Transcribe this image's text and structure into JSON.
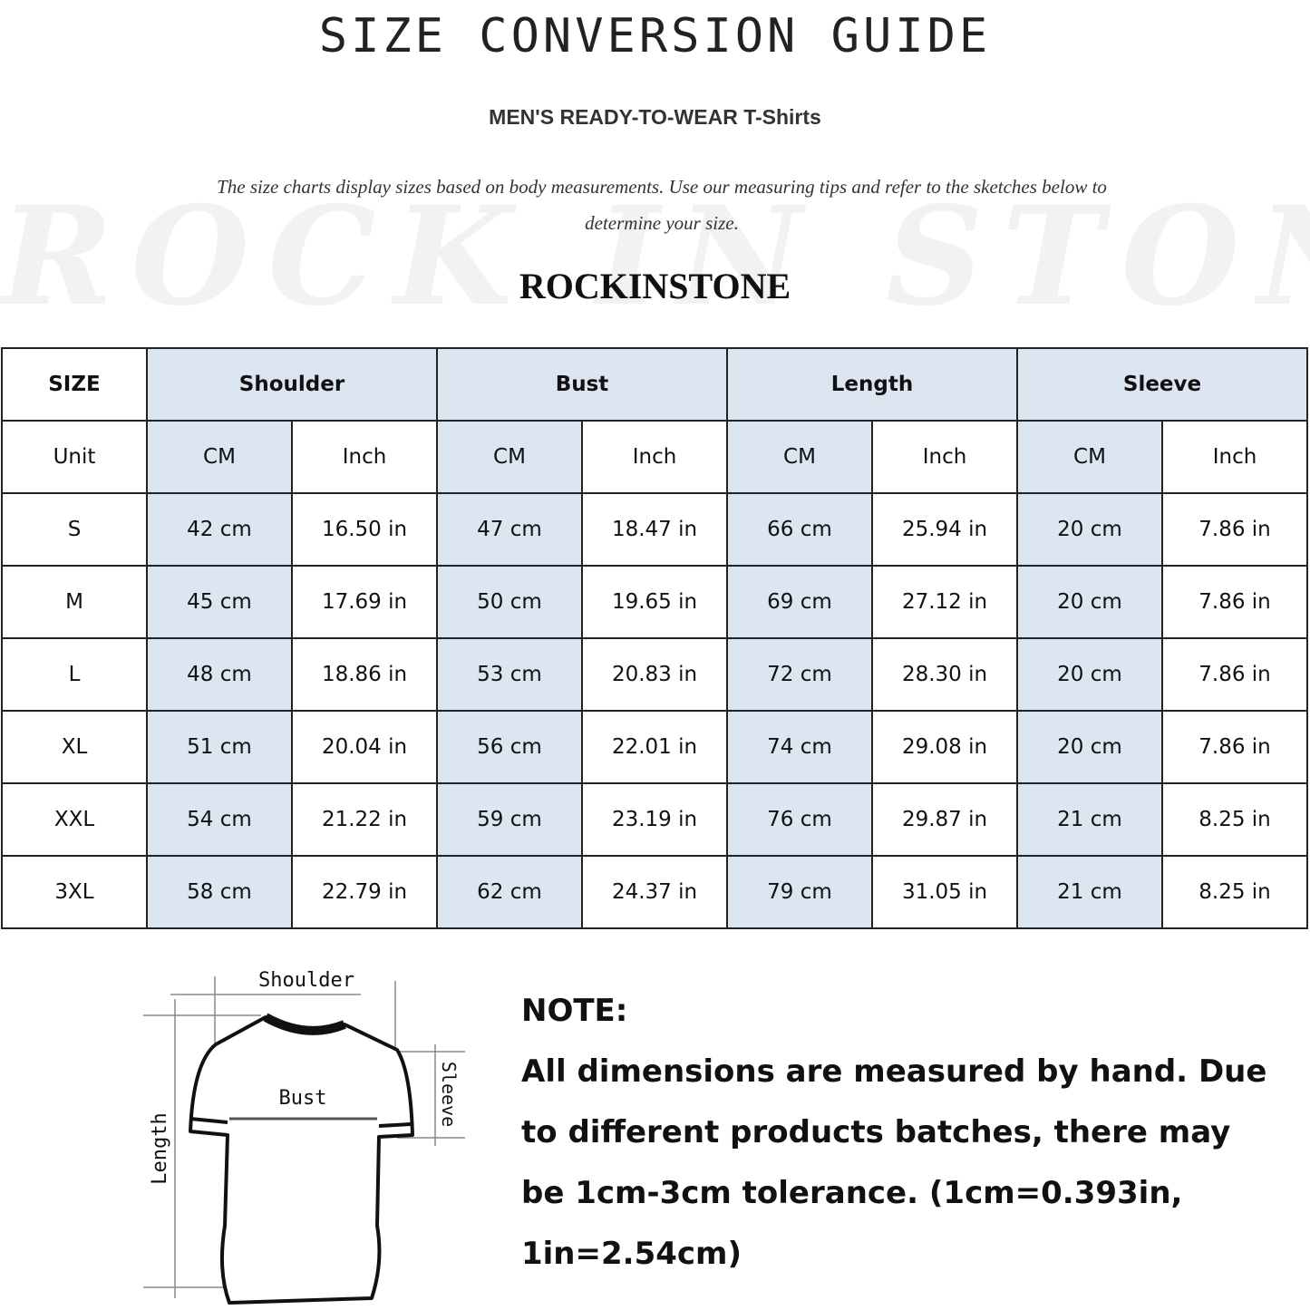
{
  "title": "SIZE CONVERSION GUIDE",
  "subtitle": "MEN'S READY-TO-WEAR T-Shirts",
  "description": "The size charts display sizes based on body measurements. Use our measuring tips and refer to the sketches below to determine your size.",
  "watermark": "ROCK IN STONE",
  "brand": "ROCKINSTONE",
  "colors": {
    "header_blue": "#dce6f1",
    "border": "#222222"
  },
  "table": {
    "size_label": "SIZE",
    "groups": [
      "Shoulder",
      "Bust",
      "Length",
      "Sleeve"
    ],
    "unit_label": "Unit",
    "units": [
      "CM",
      "Inch",
      "CM",
      "Inch",
      "CM",
      "Inch",
      "CM",
      "Inch"
    ],
    "rows": [
      {
        "size": "S",
        "values": [
          "42 cm",
          "16.50 in",
          "47 cm",
          "18.47  in",
          "66 cm",
          "25.94  in",
          "20 cm",
          "7.86  in"
        ]
      },
      {
        "size": "M",
        "values": [
          "45 cm",
          "17.69  in",
          "50 cm",
          "19.65  in",
          "69 cm",
          "27.12  in",
          "20 cm",
          "7.86  in"
        ]
      },
      {
        "size": "L",
        "values": [
          "48 cm",
          "18.86  in",
          "53 cm",
          "20.83  in",
          "72 cm",
          "28.30  in",
          "20 cm",
          "7.86  in"
        ]
      },
      {
        "size": "XL",
        "values": [
          "51 cm",
          "20.04  in",
          "56 cm",
          "22.01  in",
          "74 cm",
          "29.08  in",
          "20 cm",
          "7.86  in"
        ]
      },
      {
        "size": "XXL",
        "values": [
          "54 cm",
          "21.22  in",
          "59 cm",
          "23.19  in",
          "76 cm",
          "29.87  in",
          "21 cm",
          "8.25  in"
        ]
      },
      {
        "size": "3XL",
        "values": [
          "58 cm",
          "22.79  in",
          "62 cm",
          "24.37  in",
          "79 cm",
          "31.05  in",
          "21 cm",
          "8.25  in"
        ]
      }
    ]
  },
  "sketch": {
    "shoulder": "Shoulder",
    "bust": "Bust",
    "sleeve": "Sleeve",
    "length": "Length"
  },
  "note": {
    "heading": "NOTE:",
    "text": "All dimensions are measured by hand. Due to different products batches, there may be 1cm-3cm tolerance. (1cm=0.393in, 1in=2.54cm)"
  }
}
